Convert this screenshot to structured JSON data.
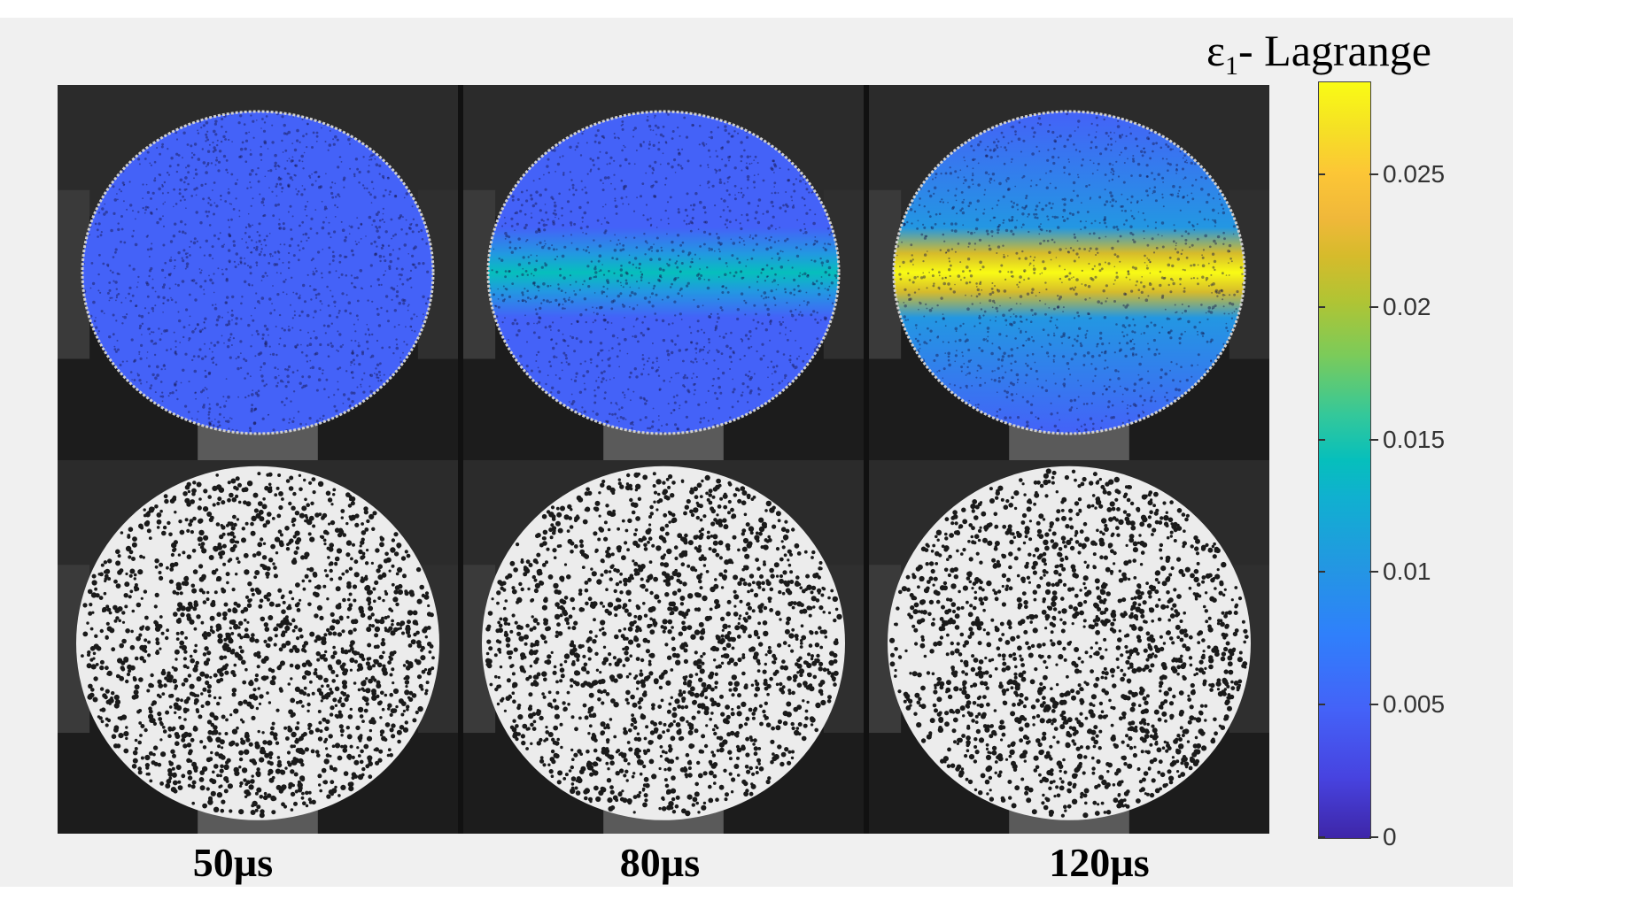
{
  "colorbar": {
    "symbol": "ε",
    "subscript": "1",
    "label_suffix": "- Lagrange",
    "ticks": [
      "0",
      "0.005",
      "0.01",
      "0.015",
      "0.02",
      "0.025"
    ],
    "range": [
      0,
      0.0285
    ],
    "colormap": "parula"
  },
  "panels": {
    "columns": [
      {
        "time_label": "50µs",
        "strain_overlay_level": 0.0
      },
      {
        "time_label": "80µs",
        "strain_overlay_level": 0.012
      },
      {
        "time_label": "120µs",
        "strain_overlay_level": 0.026
      }
    ],
    "top_row": "strain-field-overlay",
    "bottom_row": "speckle-pattern-image"
  },
  "colors": {
    "background": "#f0f0f0",
    "low_strain": "#3e26a8",
    "high_strain": "#f9fb15"
  }
}
